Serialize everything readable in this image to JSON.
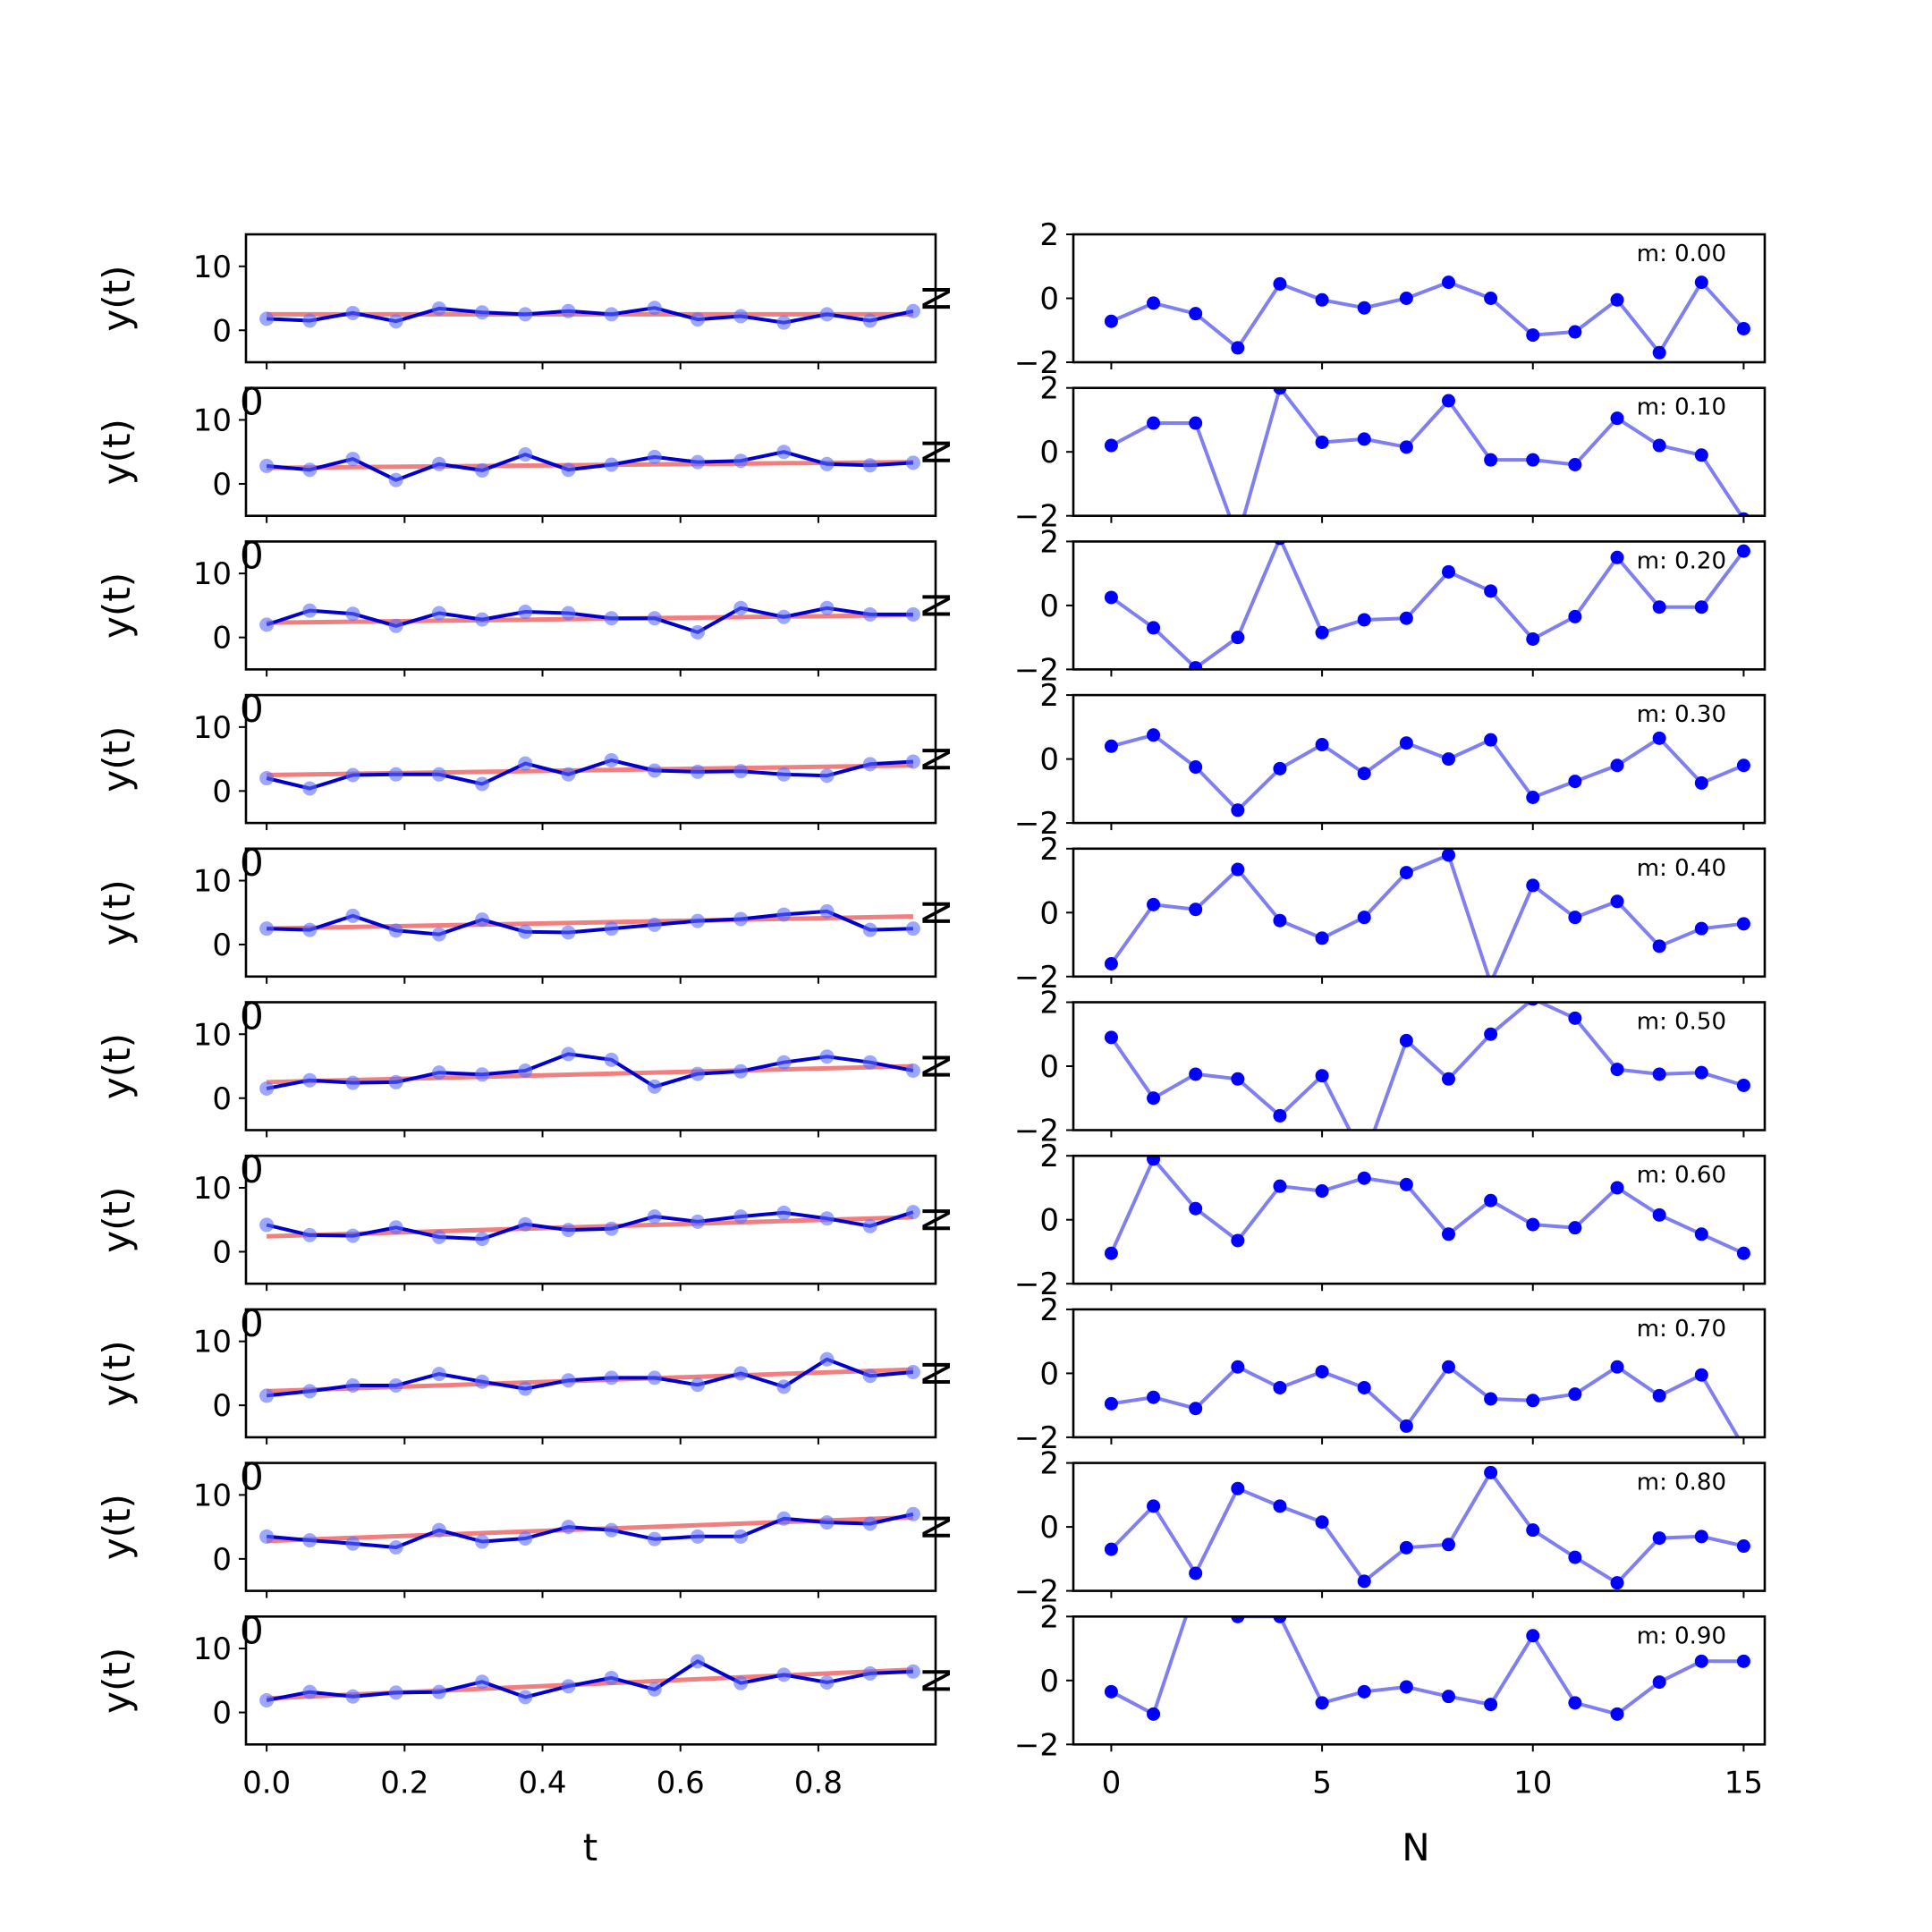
{
  "chart_data": {
    "type": "line",
    "left_column": {
      "x": [
        0.0,
        0.0625,
        0.125,
        0.1875,
        0.25,
        0.3125,
        0.375,
        0.4375,
        0.5,
        0.5625,
        0.625,
        0.6875,
        0.75,
        0.8125,
        0.875,
        0.9375
      ],
      "xlabel": "t",
      "ylabel": "y(t)",
      "xlim": [
        -0.03,
        0.97
      ],
      "ylim": [
        -5,
        15
      ],
      "xticks": [
        "0.0",
        "0.2",
        "0.4",
        "0.6",
        "0.8"
      ],
      "yticks": [
        "0",
        "10"
      ],
      "colors": {
        "data": "#0000cc",
        "trend": "#f08080",
        "markers": "#5c6cff"
      }
    },
    "right_column": {
      "x": [
        0,
        1,
        2,
        3,
        4,
        5,
        6,
        7,
        8,
        9,
        10,
        11,
        12,
        13,
        14,
        15
      ],
      "xlabel": "N",
      "xlim": [
        -0.9,
        15.5
      ],
      "ylim": [
        -2,
        2
      ],
      "xticks": [
        "0",
        "5",
        "10",
        "15"
      ],
      "yticks": [
        "−2",
        "0",
        "2"
      ],
      "colors": {
        "line": "#7f7ff0",
        "points": "#0000ff"
      }
    },
    "right_ylabel_glyph": "N",
    "left_cut_label_glyph": "0",
    "rows": [
      {
        "m": 0.0,
        "annotation": "m: 0.00",
        "trend": [
          2.5,
          2.5
        ],
        "y": [
          1.8,
          1.5,
          2.7,
          1.4,
          3.4,
          2.8,
          2.5,
          3.0,
          2.5,
          3.5,
          1.7,
          2.2,
          1.2,
          2.5,
          1.5,
          3.0
        ],
        "residual": [
          -0.72,
          -0.15,
          -0.48,
          -1.55,
          0.45,
          -0.05,
          -0.3,
          0.0,
          0.5,
          0.0,
          -1.15,
          -1.05,
          -0.05,
          -1.7,
          0.5,
          -0.95
        ]
      },
      {
        "m": 0.1,
        "annotation": "m: 0.10",
        "trend": [
          2.5,
          3.4
        ],
        "y": [
          2.8,
          2.2,
          3.9,
          0.6,
          3.1,
          2.1,
          4.6,
          2.2,
          3.0,
          4.2,
          3.4,
          3.6,
          5.0,
          3.1,
          2.9,
          3.3
        ],
        "residual": [
          0.2,
          0.9,
          0.9,
          -2.7,
          2.0,
          0.3,
          0.4,
          0.15,
          1.6,
          -0.25,
          -0.25,
          -0.4,
          1.05,
          0.2,
          -0.1,
          -2.1
        ]
      },
      {
        "m": 0.2,
        "annotation": "m: 0.20",
        "trend": [
          2.3,
          3.5
        ],
        "y": [
          2.0,
          4.2,
          3.7,
          1.8,
          3.8,
          2.8,
          4.0,
          3.8,
          3.0,
          3.0,
          0.8,
          4.6,
          3.2,
          4.6,
          3.6,
          3.6
        ],
        "residual": [
          0.25,
          -0.7,
          -1.95,
          -1.0,
          2.1,
          -0.85,
          -0.45,
          -0.4,
          1.05,
          0.45,
          -1.05,
          -0.35,
          1.5,
          -0.05,
          -0.05,
          1.7
        ]
      },
      {
        "m": 0.3,
        "annotation": "m: 0.30",
        "trend": [
          2.5,
          4.0
        ],
        "y": [
          2.0,
          0.4,
          2.5,
          2.6,
          2.6,
          1.1,
          4.3,
          2.6,
          4.8,
          3.2,
          3.0,
          3.1,
          2.6,
          2.4,
          4.2,
          4.6
        ],
        "residual": [
          0.4,
          0.75,
          -0.25,
          -1.6,
          -0.3,
          0.45,
          -0.45,
          0.5,
          0.0,
          0.6,
          -1.2,
          -0.7,
          -0.2,
          0.65,
          -0.75,
          -0.2
        ]
      },
      {
        "m": 0.4,
        "annotation": "m: 0.40",
        "trend": [
          2.5,
          4.4
        ],
        "y": [
          2.5,
          2.3,
          4.5,
          2.2,
          1.6,
          3.9,
          2.0,
          1.9,
          2.5,
          3.1,
          3.7,
          4.0,
          4.7,
          5.2,
          2.3,
          2.5
        ],
        "residual": [
          -1.6,
          0.25,
          0.1,
          1.35,
          -0.25,
          -0.8,
          -0.15,
          1.25,
          1.8,
          -2.2,
          0.85,
          -0.15,
          0.35,
          -1.05,
          -0.5,
          -0.35
        ]
      },
      {
        "m": 0.5,
        "annotation": "m: 0.50",
        "trend": [
          2.5,
          5.0
        ],
        "y": [
          1.5,
          2.8,
          2.4,
          2.5,
          4.0,
          3.7,
          4.3,
          6.9,
          6.0,
          1.8,
          3.8,
          4.2,
          5.6,
          6.5,
          5.6,
          4.3
        ],
        "residual": [
          0.9,
          -1.0,
          -0.25,
          -0.4,
          -1.55,
          -0.3,
          -2.9,
          0.8,
          -0.4,
          1.0,
          2.1,
          1.5,
          -0.1,
          -0.25,
          -0.2,
          -0.6
        ]
      },
      {
        "m": 0.6,
        "annotation": "m: 0.60",
        "trend": [
          2.4,
          5.4
        ],
        "y": [
          4.2,
          2.6,
          2.5,
          3.8,
          2.3,
          2.0,
          4.3,
          3.4,
          3.6,
          5.5,
          4.7,
          5.5,
          6.1,
          5.2,
          4.0,
          6.2
        ],
        "residual": [
          -1.05,
          1.9,
          0.35,
          -0.65,
          1.05,
          0.9,
          1.3,
          1.1,
          -0.45,
          0.6,
          -0.15,
          -0.25,
          1.0,
          0.15,
          -0.45,
          -1.05
        ]
      },
      {
        "m": 0.7,
        "annotation": "m: 0.70",
        "trend": [
          2.2,
          5.6
        ],
        "y": [
          1.5,
          2.2,
          3.1,
          3.1,
          4.9,
          3.7,
          2.6,
          3.9,
          4.3,
          4.3,
          3.2,
          5.0,
          2.9,
          7.2,
          4.6,
          5.2
        ],
        "residual": [
          -0.95,
          -0.75,
          -1.1,
          0.2,
          -0.45,
          0.05,
          -0.45,
          -1.65,
          0.2,
          -0.8,
          -0.85,
          -0.65,
          0.2,
          -0.7,
          -0.05,
          -2.3
        ]
      },
      {
        "m": 0.8,
        "annotation": "m: 0.80",
        "trend": [
          2.8,
          6.5
        ],
        "y": [
          3.5,
          2.9,
          2.4,
          1.8,
          4.5,
          2.7,
          3.2,
          5.0,
          4.5,
          3.1,
          3.5,
          3.5,
          6.3,
          5.7,
          5.5,
          7.0
        ],
        "residual": [
          -0.7,
          0.65,
          -1.45,
          1.2,
          0.65,
          0.15,
          -1.7,
          -0.65,
          -0.55,
          1.7,
          -0.1,
          -0.95,
          -1.75,
          -0.35,
          -0.3,
          -0.6
        ]
      },
      {
        "m": 0.9,
        "annotation": "m: 0.90",
        "trend": [
          2.2,
          6.7
        ],
        "y": [
          1.9,
          3.2,
          2.5,
          3.1,
          3.2,
          4.8,
          2.4,
          4.1,
          5.4,
          3.6,
          8.0,
          4.6,
          5.9,
          4.7,
          6.1,
          6.4
        ],
        "residual": [
          -0.35,
          -1.05,
          2.9,
          2.0,
          2.0,
          -0.7,
          -0.35,
          -0.2,
          -0.5,
          -0.75,
          1.4,
          -0.7,
          -1.05,
          -0.05,
          0.6,
          0.6
        ]
      }
    ]
  }
}
